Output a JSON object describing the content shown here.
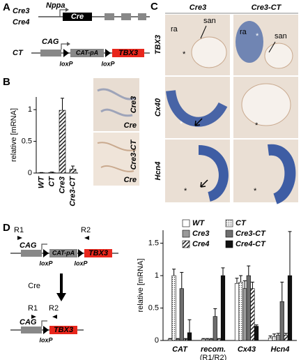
{
  "panel_a": {
    "label": "A",
    "lines": [
      "Cre3",
      "Cre4"
    ],
    "promoter": "Nppa",
    "gene": "Cre",
    "construct": "CT",
    "cag": "CAG",
    "cat_pa": "CAT-pA",
    "tbx3": "TBX3",
    "loxp": [
      "loxP",
      "loxP"
    ]
  },
  "panel_b": {
    "label": "B",
    "images": [
      {
        "line": "Cre3",
        "probe": "Cre"
      },
      {
        "line": "Cre3-CT",
        "probe": "Cre"
      }
    ]
  },
  "panel_c": {
    "label": "C",
    "columns": [
      "Cre3",
      "Cre3-CT"
    ],
    "rows": [
      "TBX3",
      "Cx40",
      "Hcn4"
    ],
    "annotations": [
      "ra",
      "san",
      "*",
      "ra",
      "san",
      "*",
      "*",
      "*",
      "*",
      "*"
    ]
  },
  "panel_d": {
    "label": "D",
    "primers": [
      "R1",
      "R2"
    ],
    "cag": "CAG",
    "cat_pa": "CAT-pA",
    "tbx3": "TBX3",
    "loxp": [
      "loxP",
      "loxP"
    ],
    "enzyme": "Cre",
    "recombined": {
      "primers": [
        "R1",
        "R2"
      ],
      "cag": "CAG",
      "tbx3": "TBX3",
      "loxp": "loxP"
    }
  },
  "chart_data": [
    {
      "type": "bar",
      "ylabel": "relative [mRNA]",
      "categories": [
        "WT",
        "CT",
        "Cre3",
        "Cre3-CT"
      ],
      "values": [
        0.005,
        0.01,
        0.99,
        0.06
      ],
      "errors": [
        0.003,
        0.005,
        0.19,
        0.05
      ],
      "color": "#555555",
      "hatch": "diagonal",
      "ylim": [
        0,
        1.2
      ],
      "yticks": [
        0,
        0.5,
        1
      ]
    },
    {
      "type": "grouped_bar",
      "ylabel": "relative [mRNA]",
      "categories": [
        [
          "CAT"
        ],
        [
          "recom.",
          "(R1/R2)"
        ],
        [
          "Cx43"
        ],
        [
          "Hcn4"
        ]
      ],
      "series": [
        {
          "name": "WT",
          "color": "#ffffff",
          "hatch": "none",
          "values": [
            0.02,
            0.02,
            0.88,
            0.04
          ],
          "errors": [
            0.01,
            0.01,
            0.08,
            0.03
          ]
        },
        {
          "name": "CT",
          "color": "#ffffff",
          "hatch": "dots",
          "values": [
            1.0,
            0.02,
            0.9,
            0.06
          ],
          "errors": [
            0.1,
            0.01,
            0.1,
            0.04
          ]
        },
        {
          "name": "Cre3",
          "color": "#9a9a9a",
          "hatch": "none",
          "values": [
            0.02,
            0.02,
            0.8,
            0.08
          ],
          "errors": [
            0.01,
            0.01,
            0.12,
            0.03
          ]
        },
        {
          "name": "Cre3-CT",
          "color": "#6e6e6e",
          "hatch": "none",
          "values": [
            0.8,
            0.37,
            1.0,
            0.6
          ],
          "errors": [
            0.25,
            0.12,
            0.15,
            0.3
          ]
        },
        {
          "name": "Cre4",
          "color": "#ffffff",
          "hatch": "diagonal",
          "values": [
            0.02,
            0.02,
            0.8,
            0.08
          ],
          "errors": [
            0.01,
            0.01,
            0.1,
            0.03
          ]
        },
        {
          "name": "Cre4-CT",
          "color": "#111111",
          "hatch": "none",
          "values": [
            0.12,
            1.0,
            0.22,
            1.0
          ],
          "errors": [
            0.2,
            0.12,
            0.02,
            0.68
          ]
        }
      ],
      "ylim": [
        0,
        1.7
      ],
      "yticks": [
        0,
        0.5,
        1,
        1.5
      ],
      "legend": "top"
    }
  ]
}
